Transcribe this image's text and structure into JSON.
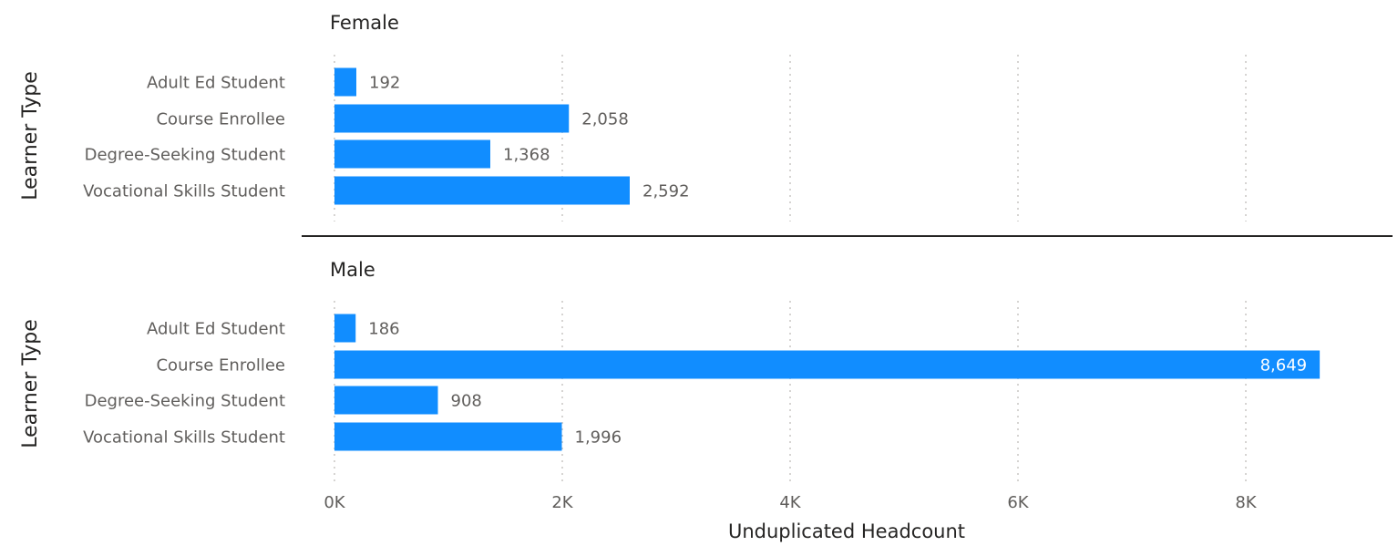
{
  "chart_data": {
    "type": "bar",
    "orientation": "horizontal",
    "ylabel": "Learner Type",
    "xlabel": "Unduplicated Headcount",
    "xlim": [
      0,
      9200
    ],
    "x_ticks": [
      0,
      2000,
      4000,
      6000,
      8000
    ],
    "x_tick_labels": [
      "0K",
      "2K",
      "4K",
      "6K",
      "8K"
    ],
    "grid": "vertical dotted",
    "bar_color": "#118DFF",
    "categories": [
      "Adult Ed Student",
      "Course Enrollee",
      "Degree-Seeking Student",
      "Vocational Skills Student"
    ],
    "panels": [
      {
        "title": "Female",
        "values": [
          192,
          2058,
          1368,
          2592
        ],
        "value_labels": [
          "192",
          "2,058",
          "1,368",
          "2,592"
        ]
      },
      {
        "title": "Male",
        "values": [
          186,
          8649,
          908,
          1996
        ],
        "value_labels": [
          "186",
          "8,649",
          "908",
          "1,996"
        ]
      }
    ]
  }
}
